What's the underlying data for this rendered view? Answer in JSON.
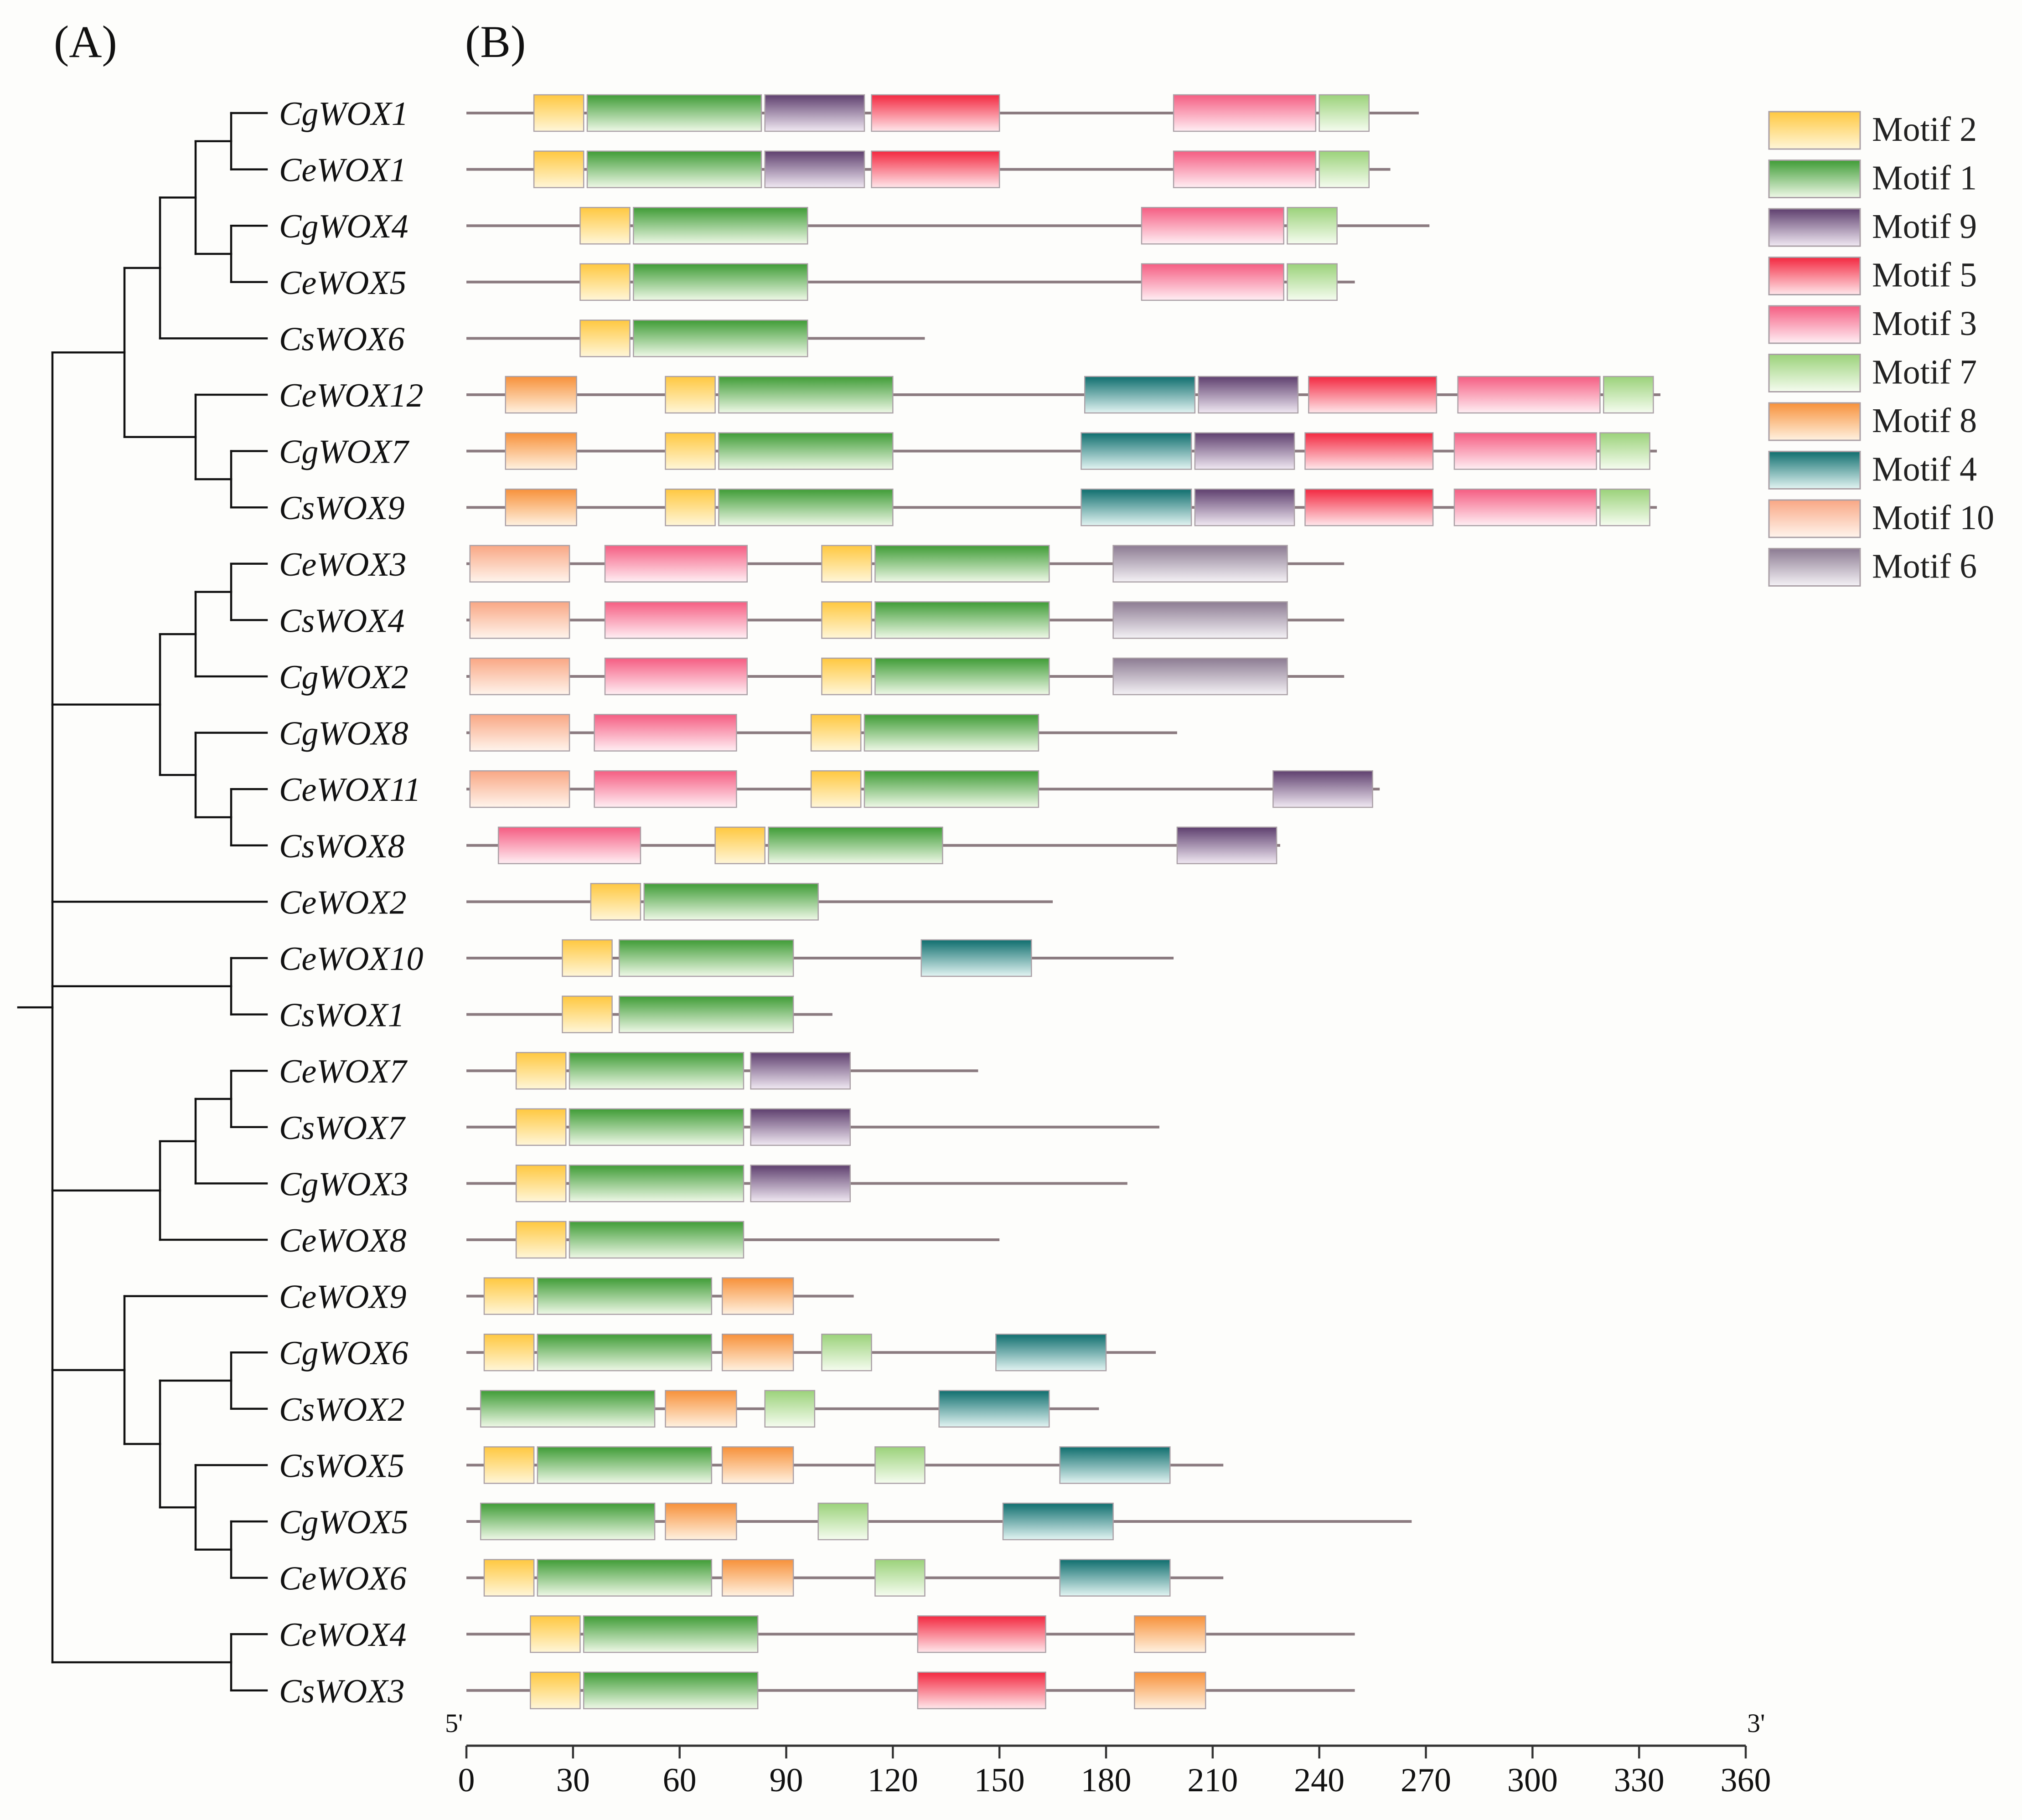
{
  "panels": {
    "a": "(A)",
    "b": "(B)"
  },
  "axis": {
    "five_prime": "5'",
    "three_prime": "3'",
    "min": 0,
    "max": 360,
    "ticks": [
      0,
      30,
      60,
      90,
      120,
      150,
      180,
      210,
      240,
      270,
      300,
      330,
      360
    ]
  },
  "motifs": {
    "M2": {
      "label": "Motif 2",
      "top": "#ffc840",
      "bottom": "#fff6d8"
    },
    "M1": {
      "label": "Motif 1",
      "top": "#3f9c36",
      "bottom": "#eef8e6"
    },
    "M9": {
      "label": "Motif 9",
      "top": "#5e3f6e",
      "bottom": "#f0e8f2"
    },
    "M5": {
      "label": "Motif 5",
      "top": "#f32840",
      "bottom": "#ffe6ea"
    },
    "M3": {
      "label": "Motif 3",
      "top": "#f55d82",
      "bottom": "#ffeef3"
    },
    "M7": {
      "label": "Motif 7",
      "top": "#9bd27a",
      "bottom": "#f5fcef"
    },
    "M8": {
      "label": "Motif 8",
      "top": "#f7913a",
      "bottom": "#fff1e0"
    },
    "M4": {
      "label": "Motif 4",
      "top": "#0f6e6e",
      "bottom": "#e2f4f2"
    },
    "M10": {
      "label": "Motif 10",
      "top": "#f9a784",
      "bottom": "#fff4ec"
    },
    "M6": {
      "label": "Motif 6",
      "top": "#8c7b92",
      "bottom": "#f4f1f5"
    }
  },
  "legend_order": [
    "M2",
    "M1",
    "M9",
    "M5",
    "M3",
    "M7",
    "M8",
    "M4",
    "M10",
    "M6"
  ],
  "genes": [
    {
      "name": "CgWOX1",
      "length": 268,
      "motifs": [
        [
          "M2",
          19,
          33
        ],
        [
          "M1",
          34,
          83
        ],
        [
          "M9",
          84,
          112
        ],
        [
          "M5",
          114,
          150
        ],
        [
          "M3",
          199,
          239
        ],
        [
          "M7",
          240,
          254
        ]
      ]
    },
    {
      "name": "CeWOX1",
      "length": 260,
      "motifs": [
        [
          "M2",
          19,
          33
        ],
        [
          "M1",
          34,
          83
        ],
        [
          "M9",
          84,
          112
        ],
        [
          "M5",
          114,
          150
        ],
        [
          "M3",
          199,
          239
        ],
        [
          "M7",
          240,
          254
        ]
      ]
    },
    {
      "name": "CgWOX4",
      "length": 271,
      "motifs": [
        [
          "M2",
          32,
          46
        ],
        [
          "M1",
          47,
          96
        ],
        [
          "M3",
          190,
          230
        ],
        [
          "M7",
          231,
          245
        ]
      ]
    },
    {
      "name": "CeWOX5",
      "length": 250,
      "motifs": [
        [
          "M2",
          32,
          46
        ],
        [
          "M1",
          47,
          96
        ],
        [
          "M3",
          190,
          230
        ],
        [
          "M7",
          231,
          245
        ]
      ]
    },
    {
      "name": "CsWOX6",
      "length": 129,
      "motifs": [
        [
          "M2",
          32,
          46
        ],
        [
          "M1",
          47,
          96
        ]
      ]
    },
    {
      "name": "CeWOX12",
      "length": 336,
      "motifs": [
        [
          "M8",
          11,
          31
        ],
        [
          "M2",
          56,
          70
        ],
        [
          "M1",
          71,
          120
        ],
        [
          "M4",
          174,
          205
        ],
        [
          "M9",
          206,
          234
        ],
        [
          "M5",
          237,
          273
        ],
        [
          "M3",
          279,
          319
        ],
        [
          "M7",
          320,
          334
        ]
      ]
    },
    {
      "name": "CgWOX7",
      "length": 335,
      "motifs": [
        [
          "M8",
          11,
          31
        ],
        [
          "M2",
          56,
          70
        ],
        [
          "M1",
          71,
          120
        ],
        [
          "M4",
          173,
          204
        ],
        [
          "M9",
          205,
          233
        ],
        [
          "M5",
          236,
          272
        ],
        [
          "M3",
          278,
          318
        ],
        [
          "M7",
          319,
          333
        ]
      ]
    },
    {
      "name": "CsWOX9",
      "length": 335,
      "motifs": [
        [
          "M8",
          11,
          31
        ],
        [
          "M2",
          56,
          70
        ],
        [
          "M1",
          71,
          120
        ],
        [
          "M4",
          173,
          204
        ],
        [
          "M9",
          205,
          233
        ],
        [
          "M5",
          236,
          272
        ],
        [
          "M3",
          278,
          318
        ],
        [
          "M7",
          319,
          333
        ]
      ]
    },
    {
      "name": "CeWOX3",
      "length": 247,
      "motifs": [
        [
          "M10",
          1,
          29
        ],
        [
          "M3",
          39,
          79
        ],
        [
          "M2",
          100,
          114
        ],
        [
          "M1",
          115,
          164
        ],
        [
          "M6",
          182,
          231
        ]
      ]
    },
    {
      "name": "CsWOX4",
      "length": 247,
      "motifs": [
        [
          "M10",
          1,
          29
        ],
        [
          "M3",
          39,
          79
        ],
        [
          "M2",
          100,
          114
        ],
        [
          "M1",
          115,
          164
        ],
        [
          "M6",
          182,
          231
        ]
      ]
    },
    {
      "name": "CgWOX2",
      "length": 247,
      "motifs": [
        [
          "M10",
          1,
          29
        ],
        [
          "M3",
          39,
          79
        ],
        [
          "M2",
          100,
          114
        ],
        [
          "M1",
          115,
          164
        ],
        [
          "M6",
          182,
          231
        ]
      ]
    },
    {
      "name": "CgWOX8",
      "length": 200,
      "motifs": [
        [
          "M10",
          1,
          29
        ],
        [
          "M3",
          36,
          76
        ],
        [
          "M2",
          97,
          111
        ],
        [
          "M1",
          112,
          161
        ]
      ]
    },
    {
      "name": "CeWOX11",
      "length": 257,
      "motifs": [
        [
          "M10",
          1,
          29
        ],
        [
          "M3",
          36,
          76
        ],
        [
          "M2",
          97,
          111
        ],
        [
          "M1",
          112,
          161
        ],
        [
          "M9",
          227,
          255
        ]
      ]
    },
    {
      "name": "CsWOX8",
      "length": 229,
      "motifs": [
        [
          "M3",
          9,
          49
        ],
        [
          "M2",
          70,
          84
        ],
        [
          "M1",
          85,
          134
        ],
        [
          "M9",
          200,
          228
        ]
      ]
    },
    {
      "name": "CeWOX2",
      "length": 165,
      "motifs": [
        [
          "M2",
          35,
          49
        ],
        [
          "M1",
          50,
          99
        ]
      ]
    },
    {
      "name": "CeWOX10",
      "length": 199,
      "motifs": [
        [
          "M2",
          27,
          41
        ],
        [
          "M1",
          43,
          92
        ],
        [
          "M4",
          128,
          159
        ]
      ]
    },
    {
      "name": "CsWOX1",
      "length": 103,
      "motifs": [
        [
          "M2",
          27,
          41
        ],
        [
          "M1",
          43,
          92
        ]
      ]
    },
    {
      "name": "CeWOX7",
      "length": 144,
      "motifs": [
        [
          "M2",
          14,
          28
        ],
        [
          "M1",
          29,
          78
        ],
        [
          "M9",
          80,
          108
        ]
      ]
    },
    {
      "name": "CsWOX7",
      "length": 195,
      "motifs": [
        [
          "M2",
          14,
          28
        ],
        [
          "M1",
          29,
          78
        ],
        [
          "M9",
          80,
          108
        ]
      ]
    },
    {
      "name": "CgWOX3",
      "length": 186,
      "motifs": [
        [
          "M2",
          14,
          28
        ],
        [
          "M1",
          29,
          78
        ],
        [
          "M9",
          80,
          108
        ]
      ]
    },
    {
      "name": "CeWOX8",
      "length": 150,
      "motifs": [
        [
          "M2",
          14,
          28
        ],
        [
          "M1",
          29,
          78
        ]
      ]
    },
    {
      "name": "CeWOX9",
      "length": 109,
      "motifs": [
        [
          "M2",
          5,
          19
        ],
        [
          "M1",
          20,
          69
        ],
        [
          "M8",
          72,
          92
        ]
      ]
    },
    {
      "name": "CgWOX6",
      "length": 194,
      "motifs": [
        [
          "M2",
          5,
          19
        ],
        [
          "M1",
          20,
          69
        ],
        [
          "M8",
          72,
          92
        ],
        [
          "M7",
          100,
          114
        ],
        [
          "M4",
          149,
          180
        ]
      ]
    },
    {
      "name": "CsWOX2",
      "length": 178,
      "motifs": [
        [
          "M1",
          4,
          53
        ],
        [
          "M8",
          56,
          76
        ],
        [
          "M7",
          84,
          98
        ],
        [
          "M4",
          133,
          164
        ]
      ]
    },
    {
      "name": "CsWOX5",
      "length": 213,
      "motifs": [
        [
          "M2",
          5,
          19
        ],
        [
          "M1",
          20,
          69
        ],
        [
          "M8",
          72,
          92
        ],
        [
          "M7",
          115,
          129
        ],
        [
          "M4",
          167,
          198
        ]
      ]
    },
    {
      "name": "CgWOX5",
      "length": 266,
      "motifs": [
        [
          "M1",
          4,
          53
        ],
        [
          "M8",
          56,
          76
        ],
        [
          "M7",
          99,
          113
        ],
        [
          "M4",
          151,
          182
        ]
      ]
    },
    {
      "name": "CeWOX6",
      "length": 213,
      "motifs": [
        [
          "M2",
          5,
          19
        ],
        [
          "M1",
          20,
          69
        ],
        [
          "M8",
          72,
          92
        ],
        [
          "M7",
          115,
          129
        ],
        [
          "M4",
          167,
          198
        ]
      ]
    },
    {
      "name": "CeWOX4",
      "length": 250,
      "motifs": [
        [
          "M2",
          18,
          32
        ],
        [
          "M1",
          33,
          82
        ],
        [
          "M5",
          127,
          163
        ],
        [
          "M8",
          188,
          208
        ]
      ]
    },
    {
      "name": "CsWOX3",
      "length": 250,
      "motifs": [
        [
          "M2",
          18,
          32
        ],
        [
          "M1",
          33,
          82
        ],
        [
          "M5",
          127,
          163
        ],
        [
          "M8",
          188,
          208
        ]
      ]
    }
  ],
  "tree": {
    "children": [
      {
        "children": [
          {
            "children": [
              {
                "children": [
                  {
                    "children": [
                      {
                        "leaf": 0
                      },
                      {
                        "leaf": 1
                      }
                    ]
                  },
                  {
                    "children": [
                      {
                        "leaf": 2
                      },
                      {
                        "leaf": 3
                      }
                    ]
                  }
                ]
              },
              {
                "leaf": 4
              }
            ]
          },
          {
            "children": [
              {
                "leaf": 5
              },
              {
                "children": [
                  {
                    "leaf": 6
                  },
                  {
                    "leaf": 7
                  }
                ]
              }
            ]
          }
        ]
      },
      {
        "children": [
          {
            "children": [
              {
                "children": [
                  {
                    "leaf": 8
                  },
                  {
                    "leaf": 9
                  }
                ]
              },
              {
                "leaf": 10
              }
            ]
          },
          {
            "children": [
              {
                "leaf": 11
              },
              {
                "children": [
                  {
                    "leaf": 12
                  },
                  {
                    "leaf": 13
                  }
                ]
              }
            ]
          }
        ]
      },
      {
        "leaf": 14
      },
      {
        "children": [
          {
            "leaf": 15
          },
          {
            "leaf": 16
          }
        ]
      },
      {
        "children": [
          {
            "children": [
              {
                "children": [
                  {
                    "leaf": 17
                  },
                  {
                    "leaf": 18
                  }
                ]
              },
              {
                "leaf": 19
              }
            ]
          },
          {
            "leaf": 20
          }
        ]
      },
      {
        "children": [
          {
            "leaf": 21
          },
          {
            "children": [
              {
                "children": [
                  {
                    "leaf": 22
                  },
                  {
                    "leaf": 23
                  }
                ]
              },
              {
                "children": [
                  {
                    "leaf": 24
                  },
                  {
                    "children": [
                      {
                        "leaf": 25
                      },
                      {
                        "leaf": 26
                      }
                    ]
                  }
                ]
              }
            ]
          }
        ]
      },
      {
        "children": [
          {
            "leaf": 27
          },
          {
            "leaf": 28
          }
        ]
      }
    ]
  }
}
